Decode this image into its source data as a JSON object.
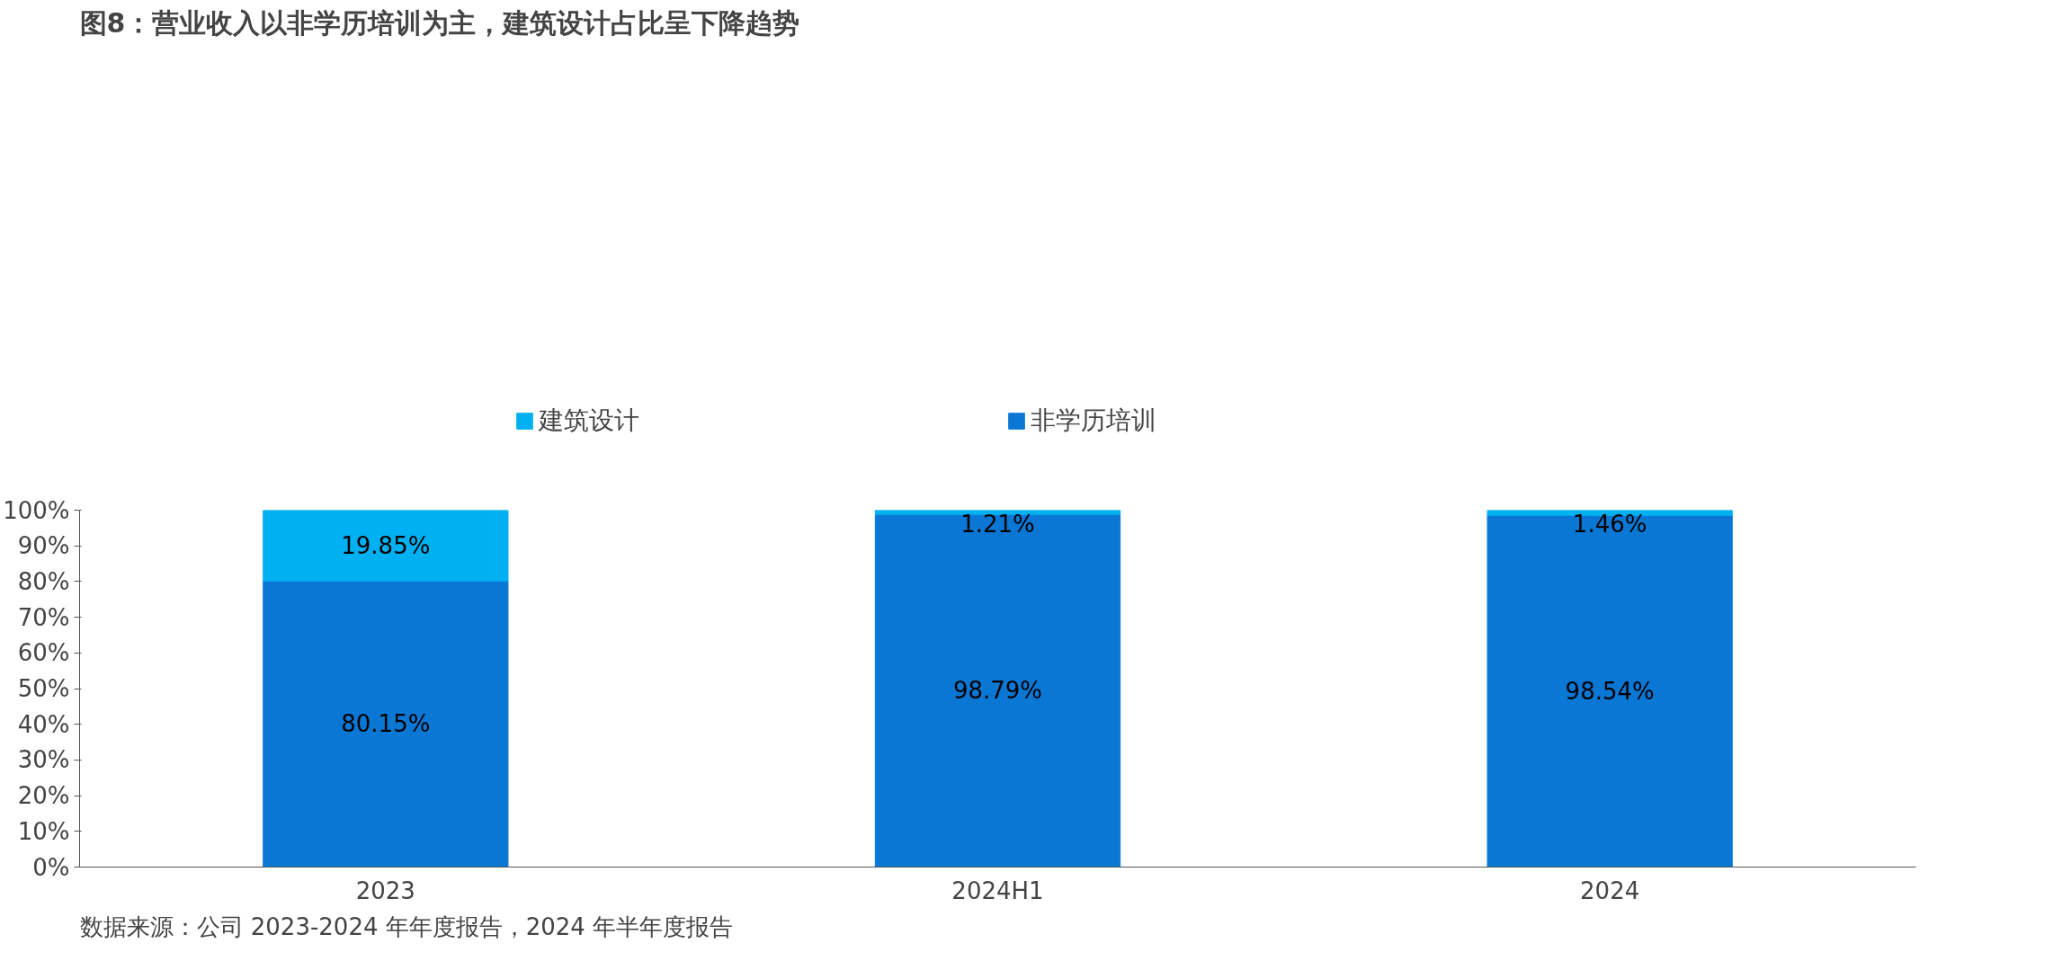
{
  "chart_data": {
    "type": "bar",
    "title": "图8：营业收入以非学历培训为主，建筑设计占比呈下降趋势",
    "categories": [
      "2023",
      "2024H1",
      "2024"
    ],
    "stacked": true,
    "series": [
      {
        "name": "非学历培训",
        "color": "#0a77d5",
        "values": [
          80.15,
          98.79,
          98.54
        ],
        "value_labels": [
          "80.15%",
          "98.79%",
          "98.54%"
        ]
      },
      {
        "name": "建筑设计",
        "color": "#00b0f0",
        "values": [
          19.85,
          1.21,
          1.46
        ],
        "value_labels": [
          "19.85%",
          "1.21%",
          "1.46%"
        ]
      }
    ],
    "ylim": [
      0,
      100
    ],
    "yticks": [
      {
        "value": 0,
        "label": "0%"
      },
      {
        "value": 10,
        "label": "10%"
      },
      {
        "value": 20,
        "label": "20%"
      },
      {
        "value": 30,
        "label": "30%"
      },
      {
        "value": 40,
        "label": "40%"
      },
      {
        "value": 50,
        "label": "50%"
      },
      {
        "value": 60,
        "label": "60%"
      },
      {
        "value": 70,
        "label": "70%"
      },
      {
        "value": 80,
        "label": "80%"
      },
      {
        "value": 90,
        "label": "90%"
      },
      {
        "value": 100,
        "label": "100%"
      }
    ],
    "grid": false,
    "legend": "top",
    "annotations": [
      "数据来源：公司 2023-2024 年年度报告，2024 年半年度报告"
    ]
  }
}
